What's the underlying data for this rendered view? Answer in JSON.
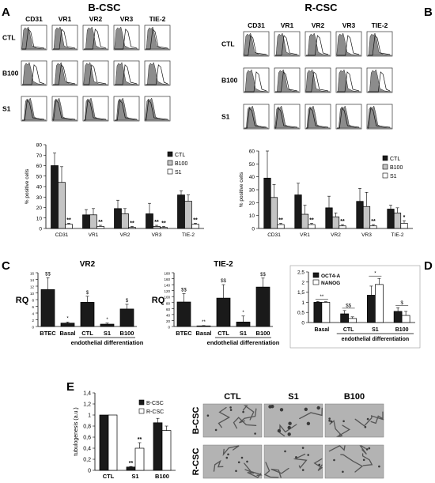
{
  "panel_letters": [
    "A",
    "B",
    "C",
    "D",
    "E"
  ],
  "headers": {
    "left": "B-CSC",
    "right": "R-CSC"
  },
  "flow": {
    "markers": [
      "CD31",
      "VR1",
      "VR2",
      "VR3",
      "TIE-2"
    ],
    "conditions": [
      "CTL",
      "B100",
      "S1"
    ]
  },
  "star": "*",
  "dstar": "**",
  "dollar": "$",
  "ddollar": "$$",
  "chart_data": [
    {
      "id": "A_bar",
      "type": "bar",
      "ylabel": "% positive cells",
      "ylim": [
        0,
        80
      ],
      "categories": [
        "CD31",
        "VR1",
        "VR2",
        "VR3",
        "TIE-2"
      ],
      "series": [
        {
          "name": "CTL",
          "values": [
            60,
            13,
            19,
            14,
            32
          ],
          "err": [
            12,
            5,
            8,
            10,
            4
          ]
        },
        {
          "name": "B100",
          "values": [
            44,
            13,
            14,
            2,
            26
          ],
          "err": [
            15,
            6,
            5,
            1,
            6
          ]
        },
        {
          "name": "S1",
          "values": [
            4,
            2,
            1,
            1,
            4
          ],
          "err": [
            1,
            1,
            1,
            1,
            1
          ]
        }
      ],
      "annotations": [
        {
          "cat": 0,
          "series": 2,
          "text": "**"
        },
        {
          "cat": 1,
          "series": 2,
          "text": "**"
        },
        {
          "cat": 2,
          "series": 2,
          "text": "**"
        },
        {
          "cat": 3,
          "series": 1,
          "text": "**"
        },
        {
          "cat": 3,
          "series": 2,
          "text": "**"
        },
        {
          "cat": 4,
          "series": 2,
          "text": "**"
        }
      ]
    },
    {
      "id": "B_bar",
      "type": "bar",
      "ylabel": "% positive cells",
      "ylim": [
        0,
        60
      ],
      "categories": [
        "CD31",
        "VR1",
        "VR2",
        "VR3",
        "TIE-2"
      ],
      "series": [
        {
          "name": "CTL",
          "values": [
            39,
            26,
            16,
            21,
            15
          ],
          "err": [
            21,
            9,
            9,
            10,
            3
          ]
        },
        {
          "name": "B100",
          "values": [
            24,
            11,
            9,
            17,
            12
          ],
          "err": [
            10,
            7,
            3,
            11,
            4
          ]
        },
        {
          "name": "S1",
          "values": [
            3,
            3,
            2,
            2,
            4
          ],
          "err": [
            1,
            1,
            1,
            1,
            2
          ]
        }
      ],
      "annotations": [
        {
          "cat": 0,
          "series": 2,
          "text": "**"
        },
        {
          "cat": 1,
          "series": 2,
          "text": "**"
        },
        {
          "cat": 2,
          "series": 2,
          "text": "**"
        },
        {
          "cat": 3,
          "series": 2,
          "text": "**"
        },
        {
          "cat": 4,
          "series": 2,
          "text": "*"
        }
      ]
    },
    {
      "id": "C_vr2",
      "type": "bar",
      "title": "VR2",
      "ylabel": "RQ",
      "ylim": [
        0,
        16
      ],
      "ticks": [
        "0",
        "2",
        "4",
        "6",
        "8",
        "10",
        "12",
        "14",
        "16"
      ],
      "categories": [
        "BTEC",
        "Basal",
        "CTL",
        "S1",
        "B100"
      ],
      "values": [
        11,
        1,
        7.2,
        0.7,
        5.2
      ],
      "err": [
        3.5,
        0.3,
        1.8,
        0.3,
        1.4
      ],
      "marks": [
        "$$",
        "*",
        "$",
        "*",
        "$"
      ],
      "group_label": "endothelial differentiation"
    },
    {
      "id": "C_tie2",
      "type": "bar",
      "title": "TIE-2",
      "ylabel": "RQ",
      "ylim": [
        0,
        180
      ],
      "ticks": [
        "0",
        "20",
        "40",
        "60",
        "80",
        "100",
        "120",
        "140",
        "160",
        "180"
      ],
      "categories": [
        "BTEC",
        "Basal",
        "CTL",
        "S1",
        "B100"
      ],
      "values": [
        82,
        2,
        95,
        15,
        132
      ],
      "err": [
        28,
        1,
        45,
        20,
        30
      ],
      "marks": [
        "$$",
        "**",
        "$$",
        "*",
        "$$"
      ],
      "group_label": "endothelial differentiation"
    },
    {
      "id": "D_bar",
      "type": "bar",
      "ylim": [
        0,
        2.5
      ],
      "ticks": [
        "0",
        "0,5",
        "1",
        "1,5",
        "2",
        "2,5"
      ],
      "categories": [
        "Basal",
        "CTL",
        "S1",
        "B100"
      ],
      "series": [
        {
          "name": "OCT4-A",
          "values": [
            1,
            0.43,
            1.35,
            0.55
          ],
          "err": [
            0.04,
            0.16,
            0.45,
            0.18
          ]
        },
        {
          "name": "NANOG",
          "values": [
            1,
            0.2,
            1.88,
            0.35
          ],
          "err": [
            0.03,
            0.08,
            0.3,
            0.2
          ]
        }
      ],
      "marks": [
        "**",
        "$$",
        "*",
        "$"
      ],
      "group_label": "endothelial differentiation"
    },
    {
      "id": "E_bar",
      "type": "bar",
      "ylabel": "tubulogenesis (a.u.)",
      "ylim": [
        0,
        1.4
      ],
      "ticks": [
        "0",
        "0,2",
        "0,4",
        "0,6",
        "0,8",
        "1",
        "1,2",
        "1,4"
      ],
      "categories": [
        "CTL",
        "S1",
        "B100"
      ],
      "series": [
        {
          "name": "B-CSC",
          "values": [
            1,
            0.06,
            0.86
          ],
          "err": [
            0,
            0.01,
            0.08
          ]
        },
        {
          "name": "R-CSC",
          "values": [
            1,
            0.4,
            0.72
          ],
          "err": [
            0,
            0.1,
            0.08
          ]
        }
      ],
      "annotations": [
        {
          "cat": 1,
          "series": 0,
          "text": "**"
        },
        {
          "cat": 1,
          "series": 1,
          "text": "**"
        }
      ]
    }
  ],
  "micrographs": {
    "columns": [
      "CTL",
      "S1",
      "B100"
    ],
    "rows": [
      "B-CSC",
      "R-CSC"
    ]
  },
  "colors": {
    "ctl": "#1a1a1a",
    "b100": "#c4c4c4",
    "s1": "#ffffff",
    "hist_fill": "#8c8c8c",
    "micro_bg": "#b3b3b3"
  }
}
